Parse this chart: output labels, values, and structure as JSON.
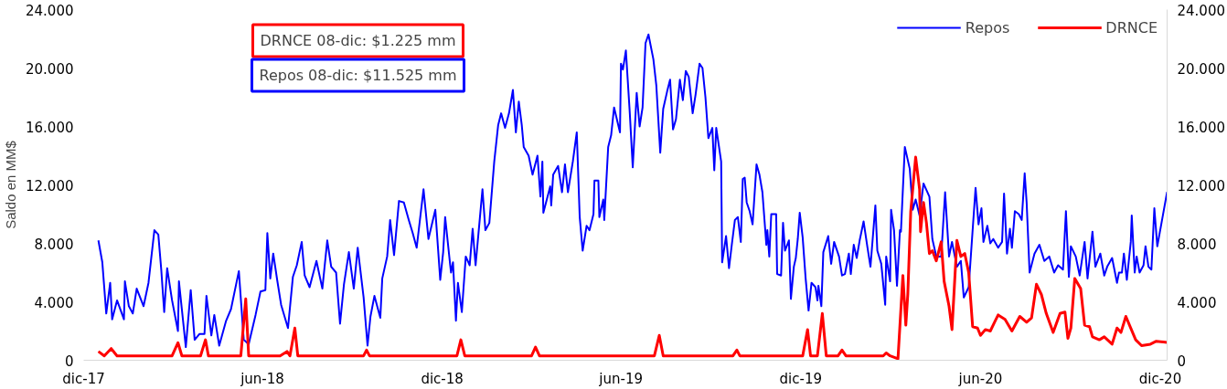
{
  "chart_data": {
    "type": "line",
    "ylabel": "Saldo en MM$",
    "annotations": [
      "DRNCE 08-dic: $1.225 mm",
      "Repos 08-dic: $11.525 mm"
    ],
    "xlim": [
      "2017-12-01",
      "2020-12-08"
    ],
    "xticks": [
      {
        "value": "2017-12-01",
        "label": "dic-17"
      },
      {
        "value": "2018-06-01",
        "label": "jun-18"
      },
      {
        "value": "2018-12-01",
        "label": "dic-18"
      },
      {
        "value": "2019-06-01",
        "label": "jun-19"
      },
      {
        "value": "2019-12-01",
        "label": "dic-19"
      },
      {
        "value": "2020-06-01",
        "label": "jun-20"
      },
      {
        "value": "2020-12-01",
        "label": "dic-20"
      }
    ],
    "ylim": [
      0,
      24000
    ],
    "yticks": [
      {
        "value": 0,
        "label": "0"
      },
      {
        "value": 4000,
        "label": "4.000"
      },
      {
        "value": 8000,
        "label": "8.000"
      },
      {
        "value": 12000,
        "label": "12.000"
      },
      {
        "value": 16000,
        "label": "16.000"
      },
      {
        "value": 20000,
        "label": "20.000"
      },
      {
        "value": 24000,
        "label": "24.000"
      }
    ],
    "y2lim": [
      0,
      24000
    ],
    "y2ticks": [
      {
        "value": 0,
        "label": "0"
      },
      {
        "value": 4000,
        "label": "4.000"
      },
      {
        "value": 8000,
        "label": "8.000"
      },
      {
        "value": 12000,
        "label": "12.000"
      },
      {
        "value": 16000,
        "label": "16.000"
      },
      {
        "value": 20000,
        "label": "20.000"
      },
      {
        "value": 24000,
        "label": "24.000"
      }
    ],
    "grid": false,
    "legend": "top right",
    "series": [
      {
        "name": "Repos",
        "color": "#0000ff",
        "x": [
          "2017-12-16",
          "2017-12-20",
          "2017-12-24",
          "2017-12-28",
          "2017-12-30",
          "2018-01-04",
          "2018-01-11",
          "2018-01-12",
          "2018-01-16",
          "2018-01-20",
          "2018-01-24",
          "2018-01-31",
          "2018-02-05",
          "2018-02-11",
          "2018-02-15",
          "2018-02-18",
          "2018-02-21",
          "2018-02-24",
          "2018-03-01",
          "2018-03-07",
          "2018-03-08",
          "2018-03-15",
          "2018-03-20",
          "2018-03-24",
          "2018-03-29",
          "2018-04-03",
          "2018-04-05",
          "2018-04-10",
          "2018-04-13",
          "2018-04-18",
          "2018-04-25",
          "2018-04-30",
          "2018-05-08",
          "2018-05-13",
          "2018-05-18",
          "2018-05-25",
          "2018-05-30",
          "2018-06-04",
          "2018-06-06",
          "2018-06-09",
          "2018-06-12",
          "2018-06-16",
          "2018-06-20",
          "2018-06-27",
          "2018-07-02",
          "2018-07-06",
          "2018-07-11",
          "2018-07-14",
          "2018-07-19",
          "2018-07-26",
          "2018-08-01",
          "2018-08-06",
          "2018-08-10",
          "2018-08-15",
          "2018-08-19",
          "2018-08-23",
          "2018-08-28",
          "2018-09-02",
          "2018-09-06",
          "2018-09-12",
          "2018-09-16",
          "2018-09-19",
          "2018-09-23",
          "2018-09-29",
          "2018-10-01",
          "2018-10-06",
          "2018-10-09",
          "2018-10-13",
          "2018-10-18",
          "2018-10-23",
          "2018-10-28",
          "2018-11-01",
          "2018-11-05",
          "2018-11-12",
          "2018-11-17",
          "2018-11-24",
          "2018-11-29",
          "2018-12-02",
          "2018-12-04",
          "2018-12-09",
          "2018-12-10",
          "2018-12-12",
          "2018-12-15",
          "2018-12-17",
          "2018-12-21",
          "2018-12-25",
          "2018-12-29",
          "2019-01-01",
          "2019-01-04",
          "2019-01-11",
          "2019-01-14",
          "2019-01-18",
          "2019-01-23",
          "2019-01-27",
          "2019-01-30",
          "2019-02-03",
          "2019-02-07",
          "2019-02-11",
          "2019-02-14",
          "2019-02-17",
          "2019-02-20",
          "2019-02-22",
          "2019-02-27",
          "2019-03-03",
          "2019-03-08",
          "2019-03-11",
          "2019-03-13",
          "2019-03-14",
          "2019-03-21",
          "2019-03-22",
          "2019-03-24",
          "2019-03-29",
          "2019-04-02",
          "2019-04-05",
          "2019-04-08",
          "2019-04-13",
          "2019-04-17",
          "2019-04-20",
          "2019-04-23",
          "2019-04-27",
          "2019-04-30",
          "2019-05-04",
          "2019-05-05",
          "2019-05-09",
          "2019-05-10",
          "2019-05-14",
          "2019-05-15",
          "2019-05-19",
          "2019-05-22",
          "2019-05-25",
          "2019-05-31",
          "2019-06-01",
          "2019-06-03",
          "2019-06-06",
          "2019-06-10",
          "2019-06-13",
          "2019-06-17",
          "2019-06-20",
          "2019-06-23",
          "2019-06-26",
          "2019-06-29",
          "2019-07-04",
          "2019-07-07",
          "2019-07-11",
          "2019-07-14",
          "2019-07-18",
          "2019-07-21",
          "2019-07-24",
          "2019-07-27",
          "2019-07-31",
          "2019-08-03",
          "2019-08-06",
          "2019-08-09",
          "2019-08-13",
          "2019-08-16",
          "2019-08-20",
          "2019-08-23",
          "2019-08-26",
          "2019-08-29",
          "2019-09-02",
          "2019-09-04",
          "2019-09-06",
          "2019-09-11",
          "2019-09-12",
          "2019-09-16",
          "2019-09-19",
          "2019-09-22",
          "2019-09-25",
          "2019-09-28",
          "2019-10-01",
          "2019-10-03",
          "2019-10-05",
          "2019-10-07",
          "2019-10-10",
          "2019-10-13",
          "2019-10-17",
          "2019-10-20",
          "2019-10-23",
          "2019-10-27",
          "2019-10-28",
          "2019-10-30",
          "2019-11-01",
          "2019-11-06",
          "2019-11-07",
          "2019-11-11",
          "2019-11-13",
          "2019-11-15",
          "2019-11-19",
          "2019-11-21",
          "2019-11-24",
          "2019-11-26",
          "2019-11-28",
          "2019-11-30",
          "2019-12-03",
          "2019-12-06",
          "2019-12-09",
          "2019-12-12",
          "2019-12-16",
          "2019-12-18",
          "2019-12-19",
          "2019-12-22",
          "2019-12-24",
          "2019-12-29",
          "2020-01-01",
          "2020-01-04",
          "2020-01-09",
          "2020-01-12",
          "2020-01-15",
          "2020-01-19",
          "2020-01-21",
          "2020-01-24",
          "2020-01-27",
          "2020-01-30",
          "2020-02-03",
          "2020-02-07",
          "2020-02-10",
          "2020-02-15",
          "2020-02-17",
          "2020-02-21",
          "2020-02-25",
          "2020-02-26",
          "2020-03-01",
          "2020-03-02",
          "2020-03-05",
          "2020-03-08",
          "2020-03-11",
          "2020-03-12",
          "2020-03-16",
          "2020-03-21",
          "2020-03-24",
          "2020-03-27",
          "2020-03-31",
          "2020-04-04",
          "2020-04-10",
          "2020-04-13",
          "2020-04-17",
          "2020-04-22",
          "2020-04-26",
          "2020-04-30",
          "2020-05-03",
          "2020-05-08",
          "2020-05-12",
          "2020-05-15",
          "2020-05-20",
          "2020-05-27",
          "2020-05-30",
          "2020-06-02",
          "2020-06-04",
          "2020-06-08",
          "2020-06-11",
          "2020-06-14",
          "2020-06-19",
          "2020-06-23",
          "2020-06-25",
          "2020-06-28",
          "2020-07-01",
          "2020-07-03",
          "2020-07-06",
          "2020-07-10",
          "2020-07-13",
          "2020-07-16",
          "2020-07-18",
          "2020-07-21",
          "2020-07-26",
          "2020-07-31",
          "2020-08-05",
          "2020-08-10",
          "2020-08-15",
          "2020-08-19",
          "2020-08-24",
          "2020-08-27",
          "2020-08-30",
          "2020-09-01",
          "2020-09-06",
          "2020-09-10",
          "2020-09-15",
          "2020-09-18",
          "2020-09-23",
          "2020-09-26",
          "2020-10-01",
          "2020-10-05",
          "2020-10-08",
          "2020-10-13",
          "2020-10-18",
          "2020-10-20",
          "2020-10-23",
          "2020-10-25",
          "2020-10-28",
          "2020-11-01",
          "2020-11-02",
          "2020-11-05",
          "2020-11-07",
          "2020-11-10",
          "2020-11-14",
          "2020-11-16",
          "2020-11-19",
          "2020-11-22",
          "2020-11-25",
          "2020-11-28",
          "2020-12-08"
        ],
        "values": [
          8200,
          6700,
          3200,
          5300,
          2800,
          4100,
          2800,
          5400,
          3700,
          3200,
          4900,
          3700,
          5300,
          8900,
          8600,
          6200,
          3300,
          6300,
          4100,
          2000,
          5400,
          900,
          4800,
          1400,
          1800,
          1800,
          4400,
          1700,
          3100,
          1000,
          2700,
          3500,
          6100,
          1400,
          1100,
          3100,
          4700,
          4800,
          8700,
          5600,
          7300,
          5500,
          3800,
          2200,
          5700,
          6500,
          8100,
          5800,
          5000,
          6800,
          4900,
          8200,
          6400,
          6000,
          2500,
          5200,
          7400,
          4900,
          7700,
          4300,
          1000,
          3000,
          4400,
          2900,
          5600,
          7100,
          9600,
          7200,
          10900,
          10800,
          9600,
          8700,
          7700,
          11700,
          8300,
          10300,
          5500,
          7400,
          9800,
          6600,
          6000,
          6700,
          2700,
          5300,
          3300,
          7100,
          6500,
          9000,
          6500,
          11700,
          8900,
          9400,
          13600,
          16100,
          16900,
          15900,
          16900,
          18500,
          15600,
          17700,
          16100,
          14600,
          14000,
          12700,
          14000,
          11200,
          13600,
          10100,
          11900,
          10600,
          12700,
          13300,
          11500,
          13400,
          11500,
          13600,
          15600,
          9800,
          7500,
          9200,
          8900,
          10000,
          12300,
          12300,
          9800,
          11000,
          9600,
          14600,
          15400,
          17300,
          15600,
          20300,
          19900,
          21200,
          16900,
          13200,
          18300,
          16000,
          17300,
          21700,
          22300,
          20600,
          18800,
          14200,
          17200,
          18400,
          19200,
          15800,
          16500,
          19200,
          17800,
          19800,
          19400,
          16900,
          18200,
          20300,
          20000,
          18000,
          15200,
          15900,
          13000,
          15900,
          13600,
          6700,
          8500,
          6300,
          8000,
          9600,
          9800,
          8100,
          12400,
          12500,
          10800,
          10200,
          9300,
          13400,
          12700,
          11500,
          7900,
          8900,
          7100,
          10000,
          10000,
          5900,
          5800,
          9400,
          7500,
          8200,
          4200,
          6400,
          7000,
          8300,
          10100,
          8400,
          5600,
          3400,
          5300,
          5000,
          4100,
          5100,
          3700,
          7400,
          8500,
          6600,
          8100,
          7100,
          5800,
          5900,
          7300,
          5900,
          7900,
          7000,
          8200,
          9500,
          7700,
          6400,
          10600,
          7500,
          6600,
          3800,
          7100,
          5400,
          10300,
          8900,
          5100,
          8900,
          8800,
          14600,
          13100,
          10300,
          11000,
          9900,
          12100,
          11200,
          8300,
          7100,
          7100,
          11500,
          7100,
          8100,
          6400,
          6800,
          4300,
          5000,
          11800,
          9300,
          10400,
          8100,
          9200,
          8000,
          8300,
          7700,
          8100,
          11400,
          7300,
          9000,
          7700,
          10200,
          10000,
          9600,
          12800,
          10800,
          6000,
          7300,
          7900,
          6800,
          7100,
          6000,
          6500,
          6200,
          10200,
          5700,
          7800,
          7100,
          5800,
          8100,
          5600,
          8800,
          6400,
          7300,
          5800,
          6400,
          7000,
          5300,
          6000,
          6000,
          7300,
          5500,
          8100,
          9900,
          6000,
          7100,
          6000,
          6500,
          7800,
          6400,
          6200,
          10400,
          7800,
          11525
        ]
      },
      {
        "name": "DRNCE",
        "color": "#ff0000",
        "x": [
          "2017-12-16",
          "2017-12-22",
          "2017-12-29",
          "2018-01-04",
          "2018-03-01",
          "2018-03-07",
          "2018-03-11",
          "2018-03-30",
          "2018-04-04",
          "2018-04-07",
          "2018-05-10",
          "2018-05-15",
          "2018-05-18",
          "2018-06-19",
          "2018-06-26",
          "2018-06-29",
          "2018-07-04",
          "2018-07-07",
          "2018-09-12",
          "2018-09-15",
          "2018-09-18",
          "2018-12-16",
          "2018-12-20",
          "2018-12-24",
          "2019-03-02",
          "2019-03-06",
          "2019-03-10",
          "2019-07-05",
          "2019-07-10",
          "2019-07-14",
          "2019-09-23",
          "2019-09-27",
          "2019-09-30",
          "2019-12-03",
          "2019-12-08",
          "2019-12-11",
          "2019-12-18",
          "2019-12-23",
          "2019-12-27",
          "2020-01-08",
          "2020-01-12",
          "2020-01-16",
          "2020-02-23",
          "2020-02-26",
          "2020-03-01",
          "2020-03-09",
          "2020-03-14",
          "2020-03-17",
          "2020-03-19",
          "2020-03-22",
          "2020-03-27",
          "2020-03-31",
          "2020-04-01",
          "2020-04-04",
          "2020-04-07",
          "2020-04-10",
          "2020-04-13",
          "2020-04-17",
          "2020-04-22",
          "2020-04-25",
          "2020-04-30",
          "2020-05-03",
          "2020-05-08",
          "2020-05-12",
          "2020-05-16",
          "2020-05-20",
          "2020-05-24",
          "2020-05-29",
          "2020-06-01",
          "2020-06-06",
          "2020-06-11",
          "2020-06-16",
          "2020-06-19",
          "2020-06-26",
          "2020-07-03",
          "2020-07-11",
          "2020-07-18",
          "2020-07-23",
          "2020-07-28",
          "2020-08-02",
          "2020-08-07",
          "2020-08-14",
          "2020-08-21",
          "2020-08-26",
          "2020-08-29",
          "2020-09-01",
          "2020-09-05",
          "2020-09-11",
          "2020-09-15",
          "2020-09-20",
          "2020-09-23",
          "2020-09-30",
          "2020-10-05",
          "2020-10-13",
          "2020-10-18",
          "2020-10-22",
          "2020-10-27",
          "2020-11-01",
          "2020-11-06",
          "2020-11-12",
          "2020-11-21",
          "2020-11-27",
          "2020-12-08"
        ],
        "values": [
          600,
          300,
          800,
          300,
          300,
          1200,
          300,
          300,
          1400,
          300,
          300,
          4200,
          300,
          300,
          600,
          300,
          2200,
          300,
          300,
          700,
          300,
          300,
          1400,
          300,
          300,
          900,
          300,
          300,
          1700,
          300,
          300,
          700,
          300,
          300,
          2100,
          300,
          300,
          3200,
          300,
          300,
          700,
          300,
          300,
          500,
          300,
          100,
          5800,
          2400,
          4500,
          10200,
          13900,
          11700,
          8800,
          10800,
          9400,
          7300,
          7500,
          6800,
          8100,
          5400,
          3700,
          2100,
          8200,
          7100,
          7300,
          6000,
          2300,
          2200,
          1700,
          2100,
          2000,
          2700,
          3100,
          2800,
          2000,
          3000,
          2600,
          2900,
          5200,
          4500,
          3200,
          1900,
          3200,
          3300,
          1500,
          2200,
          5600,
          4900,
          2400,
          2300,
          1600,
          1400,
          1600,
          1100,
          2200,
          1900,
          3000,
          2200,
          1400,
          1000,
          1100,
          1300,
          1225
        ]
      }
    ]
  }
}
